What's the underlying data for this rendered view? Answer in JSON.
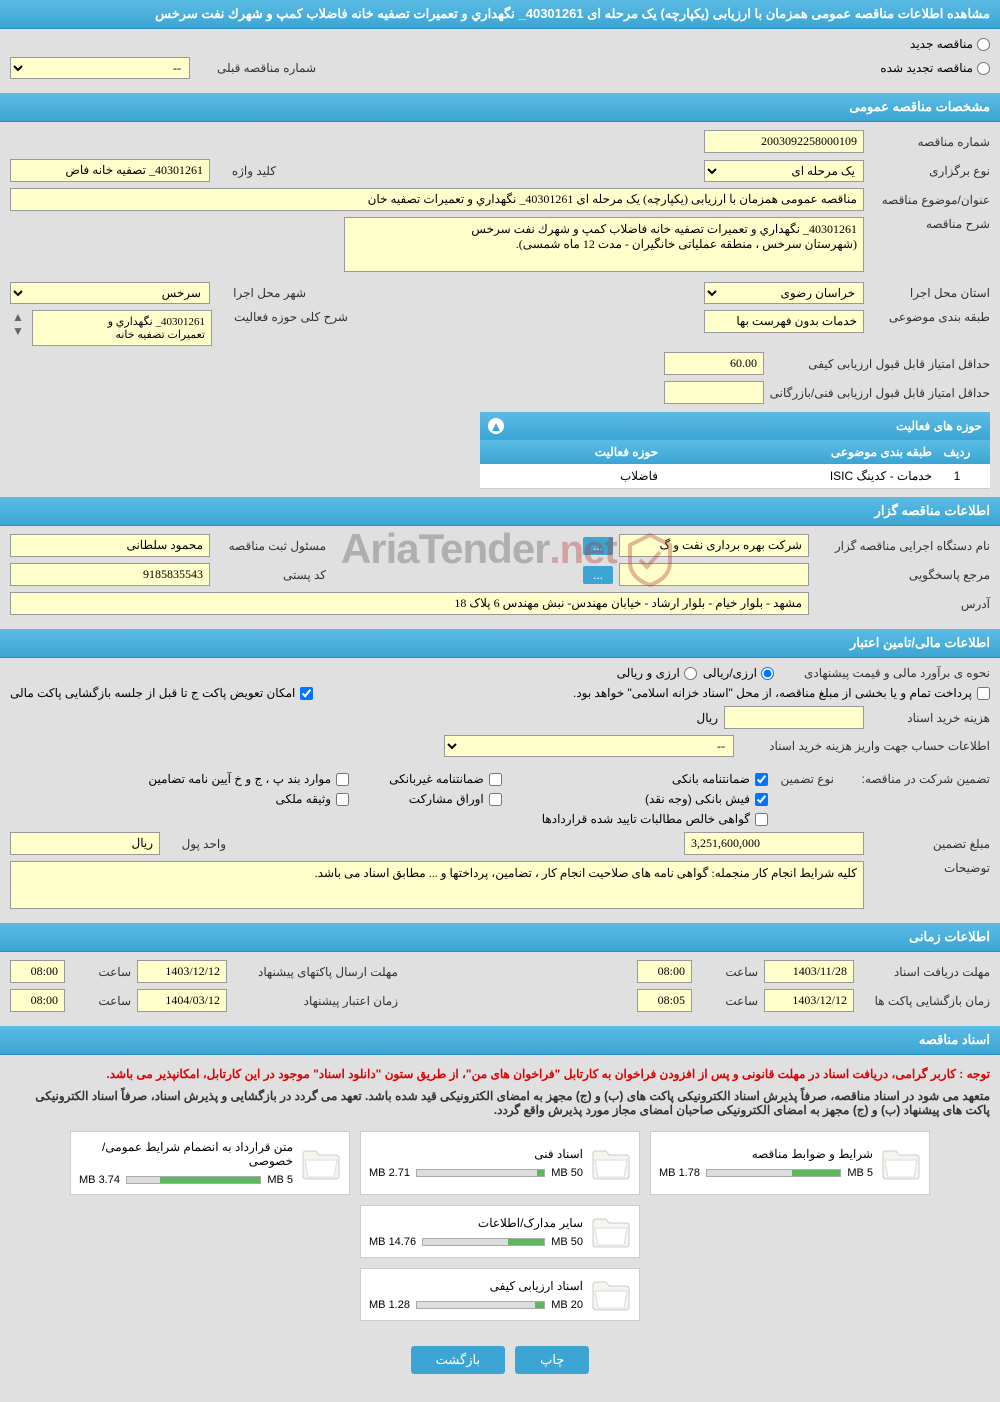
{
  "pageTitle": "مشاهده اطلاعات مناقصه عمومی همزمان با ارزیابی (یکپارچه) یک مرحله ای 40301261_ نگهداري و تعميرات تصفيه خانه فاضلاب كمپ و شهرك نفت سرخس",
  "tenderTypeRadios": {
    "new": "مناقصه جدید",
    "renewed": "مناقصه تجدید شده"
  },
  "prevTenderLabel": "شماره مناقصه قبلی",
  "prevTenderValue": "--",
  "sections": {
    "general": "مشخصات مناقصه عمومی",
    "holder": "اطلاعات مناقصه گزار",
    "financial": "اطلاعات مالی/تامین اعتبار",
    "time": "اطلاعات زمانی",
    "docs": "اسناد مناقصه"
  },
  "general": {
    "tenderNoLabel": "شماره مناقصه",
    "tenderNo": "2003092258000109",
    "holdTypeLabel": "نوع برگزاری",
    "holdType": "یک مرحله ای",
    "keywordLabel": "کلید واژه",
    "keyword": "40301261_ تصفيه خانه فاض",
    "subjectLabel": "عنوان/موضوع مناقصه",
    "subject": "مناقصه عمومی همزمان با ارزیابی (یکپارچه) یک مرحله ای 40301261_ نگهداري و تعميرات تصفيه خان",
    "descLabel": "شرح مناقصه",
    "desc": "40301261_ نگهداري و تعميرات تصفيه خانه فاضلاب كمپ و شهرك نفت سرخس\n(شهرستان سرخس ، منطقه عملیاتی خانگیران - مدت 12 ماه شمسی).",
    "provinceLabel": "استان محل اجرا",
    "province": "خراسان رضوی",
    "cityLabel": "شهر محل اجرا",
    "city": "سرخس",
    "categoryLabel": "طبقه بندی موضوعی",
    "category": "خدمات بدون فهرست بها",
    "activityDescLabel": "شرح کلی حوزه فعالیت",
    "activityDesc": "40301261_ نگهداري و\nتعميرات تصفيه خانه",
    "qualityScoreLabel": "حداقل امتیاز قابل قبول ارزیابی کیفی",
    "qualityScore": "60.00",
    "techScoreLabel": "حداقل امتیاز قابل قبول ارزیابی فنی/بازرگانی",
    "techScore": ""
  },
  "activityTable": {
    "title": "حوزه های فعالیت",
    "colRow": "ردیف",
    "colCategory": "طبقه بندی موضوعی",
    "colField": "حوزه فعالیت",
    "rows": [
      {
        "idx": "1",
        "cat": "خدمات - کدینگ ISIC",
        "field": "فاضلاب"
      }
    ]
  },
  "holder": {
    "orgLabel": "نام دستگاه اجرایی مناقصه گزار",
    "org": "شرکت بهره برداری نفت و گ",
    "regOfficerLabel": "مسئول ثبت مناقصه",
    "regOfficer": "محمود سلطانی",
    "respRefLabel": "مرجع پاسخگویی",
    "respRef": "",
    "postalLabel": "کد پستی",
    "postal": "9185835543",
    "addressLabel": "آدرس",
    "address": "مشهد - بلوار خیام - بلوار ارشاد - خیابان مهندس- نبش مهندس 6 پلاک 18",
    "moreBtn": "..."
  },
  "financial": {
    "estimateLabel": "نحوه ی برآورد مالی و قیمت پیشنهادی",
    "opt1": "ارزی/ریالی",
    "opt2": "ارزی و ریالی",
    "paymentNote": "پرداخت تمام و یا بخشی از مبلغ مناقصه، از محل \"اسناد خزانه اسلامی\" خواهد بود.",
    "switchNote": "امکان تعویض پاکت ج تا قبل از جلسه بازگشایی پاکت مالی",
    "docCostLabel": "هزینه خرید اسناد",
    "docCost": "",
    "docCostUnit": "ریال",
    "acctLabel": "اطلاعات حساب جهت واریز هزینه خرید اسناد",
    "acctValue": "--",
    "guaranteeLabel": "تضمین شرکت در مناقصه:",
    "guaranteeTypeLabel": "نوع تضمین",
    "opts": {
      "bank": "ضمانتنامه بانکی",
      "nonbank": "ضمانتنامه غیربانکی",
      "bylaw": "موارد بند پ ، ج و خ آیین نامه تضامین",
      "cash": "فیش بانکی (وجه نقد)",
      "shares": "اوراق مشارکت",
      "property": "وثیقه ملکی",
      "receivable": "گواهی خالص مطالبات تایید شده قراردادها"
    },
    "amountLabel": "مبلغ تضمین",
    "amount": "3,251,600,000",
    "unitLabel": "واحد پول",
    "unit": "ریال",
    "notesLabel": "توضیحات",
    "notes": "کلیه شرایط انجام کار منجمله: گواهی نامه های صلاحیت انجام کار ، تضامین، پرداختها و ... مطابق اسناد می باشد."
  },
  "time": {
    "docDeadlineLabel": "مهلت دریافت اسناد",
    "docDeadline": "1403/11/28",
    "docTimeLabel": "ساعت",
    "docTime": "08:00",
    "bidDeadlineLabel": "مهلت ارسال پاکتهای پیشنهاد",
    "bidDeadline": "1403/12/12",
    "bidTimeLabel": "ساعت",
    "bidTime": "08:00",
    "openLabel": "زمان بازگشایی پاکت ها",
    "openDate": "1403/12/12",
    "openTimeLabel": "ساعت",
    "openTime": "08:05",
    "validLabel": "زمان اعتبار پیشنهاد",
    "validDate": "1404/03/12",
    "validTimeLabel": "ساعت",
    "validTime": "08:00"
  },
  "docs": {
    "note1": "توجه : کاربر گرامی، دریافت اسناد در مهلت قانونی و پس از افزودن فراخوان به کارتابل \"فراخوان های من\"، از طریق ستون \"دانلود اسناد\" موجود در این کارتابل، امکانپذیر می باشد.",
    "note2": "متعهد می شود در اسناد مناقصه، صرفاً پذیرش اسناد الکترونیکی پاکت های (ب) و (ج) مجهز به امضای الکترونیکی قید شده باشد. تعهد می گردد در بازگشایی و پذیرش اسناد، صرفاً اسناد الکترونیکی پاکت های پیشنهاد (ب) و (ج) مجهز به امضای الکترونیکی صاحبان امضای مجاز مورد پذیرش واقع گردد.",
    "files": [
      {
        "title": "شرایط و ضوابط مناقصه",
        "used": "1.78 MB",
        "total": "5 MB",
        "pct": 36
      },
      {
        "title": "اسناد فنی",
        "used": "2.71 MB",
        "total": "50 MB",
        "pct": 6
      },
      {
        "title": "متن قرارداد به انضمام شرایط عمومی/خصوصی",
        "used": "3.74 MB",
        "total": "5 MB",
        "pct": 75
      },
      {
        "title": "سایر مدارک/اطلاعات",
        "used": "14.76 MB",
        "total": "50 MB",
        "pct": 30
      },
      {
        "title": "اسناد ارزیابی کیفی",
        "used": "1.28 MB",
        "total": "20 MB",
        "pct": 7
      }
    ]
  },
  "buttons": {
    "print": "چاپ",
    "back": "بازگشت"
  },
  "watermark": "AriaTender",
  "watermarkNet": ".net"
}
